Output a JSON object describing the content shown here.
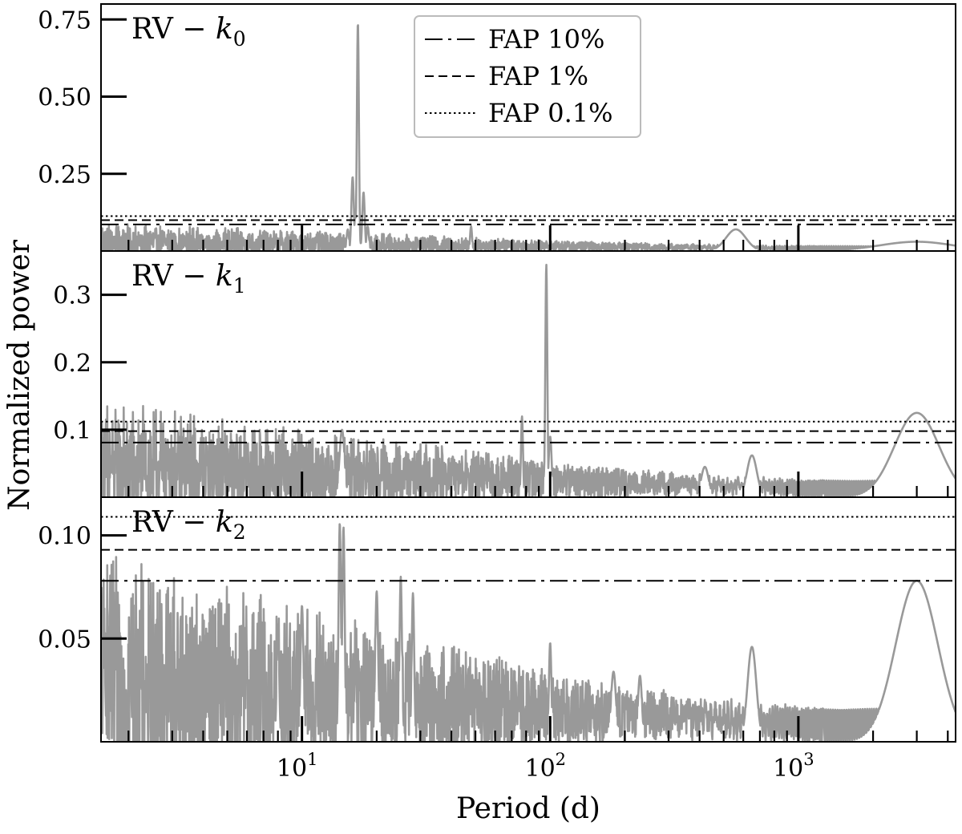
{
  "chart_data": {
    "type": "line",
    "xlabel": "Period (d)",
    "ylabel": "Normalized power",
    "xscale": "log",
    "xlim": [
      1.55,
      4300
    ],
    "x_tick_labels": [
      {
        "value": 10,
        "base": "10",
        "exp": "1"
      },
      {
        "value": 100,
        "base": "10",
        "exp": "2"
      },
      {
        "value": 1000,
        "base": "10",
        "exp": "3"
      }
    ],
    "line_color": "#999999",
    "legend": {
      "placement": "top-center (top panel)",
      "entries": [
        {
          "label": "FAP 10%",
          "style": "dash-dot"
        },
        {
          "label": "FAP 1%",
          "style": "dashed"
        },
        {
          "label": "FAP 0.1%",
          "style": "dotted"
        }
      ]
    },
    "panels": [
      {
        "label_prefix": "RV − ",
        "label_var": "k",
        "label_sub": "0",
        "ylim": [
          0,
          0.8
        ],
        "yticks": [
          0.25,
          0.5,
          0.75
        ],
        "ytick_labels": [
          "0.25",
          "0.50",
          "0.75"
        ],
        "fap": {
          "fap10": 0.086,
          "fap1": 0.1,
          "fap01": 0.113
        },
        "noise_level": 0.018,
        "peaks": [
          {
            "period": 16.8,
            "power": 0.74,
            "width": 0.004
          },
          {
            "period": 16.0,
            "power": 0.24,
            "width": 0.005
          },
          {
            "period": 17.7,
            "power": 0.19,
            "width": 0.005
          },
          {
            "period": 16.4,
            "power": 0.12,
            "width": 0.004
          },
          {
            "period": 15.3,
            "power": 0.07,
            "width": 0.005
          },
          {
            "period": 18.4,
            "power": 0.08,
            "width": 0.005
          },
          {
            "period": 560,
            "power": 0.07,
            "width": 0.04
          },
          {
            "period": 48,
            "power": 0.08,
            "width": 0.004
          },
          {
            "period": 3000,
            "power": 0.03,
            "width": 0.15
          }
        ]
      },
      {
        "label_prefix": "RV − ",
        "label_var": "k",
        "label_sub": "1",
        "ylim": [
          0,
          0.365
        ],
        "yticks": [
          0.1,
          0.2,
          0.3
        ],
        "ytick_labels": [
          "0.1",
          "0.2",
          "0.3"
        ],
        "fap": {
          "fap10": 0.081,
          "fap1": 0.098,
          "fap01": 0.112
        },
        "noise_level": 0.028,
        "peaks": [
          {
            "period": 96.5,
            "power": 0.345,
            "width": 0.004
          },
          {
            "period": 77,
            "power": 0.12,
            "width": 0.004
          },
          {
            "period": 100,
            "power": 0.09,
            "width": 0.006
          },
          {
            "period": 14.5,
            "power": 0.1,
            "width": 0.01
          },
          {
            "period": 3000,
            "power": 0.125,
            "width": 0.09
          },
          {
            "period": 650,
            "power": 0.062,
            "width": 0.02
          },
          {
            "period": 420,
            "power": 0.045,
            "width": 0.015
          }
        ]
      },
      {
        "label_prefix": "RV − ",
        "label_var": "k",
        "label_sub": "2",
        "ylim": [
          0,
          0.1185
        ],
        "yticks": [
          0.05,
          0.1
        ],
        "ytick_labels": [
          "0.05",
          "0.10"
        ],
        "fap": {
          "fap10": 0.078,
          "fap1": 0.093,
          "fap01": 0.109
        },
        "noise_level": 0.018,
        "peaks": [
          {
            "period": 14.2,
            "power": 0.106,
            "width": 0.005
          },
          {
            "period": 14.7,
            "power": 0.104,
            "width": 0.005
          },
          {
            "period": 25,
            "power": 0.08,
            "width": 0.005
          },
          {
            "period": 20,
            "power": 0.073,
            "width": 0.006
          },
          {
            "period": 28,
            "power": 0.072,
            "width": 0.005
          },
          {
            "period": 10,
            "power": 0.066,
            "width": 0.006
          },
          {
            "period": 8,
            "power": 0.057,
            "width": 0.005
          },
          {
            "period": 100,
            "power": 0.048,
            "width": 0.005
          },
          {
            "period": 3000,
            "power": 0.078,
            "width": 0.085
          },
          {
            "period": 650,
            "power": 0.046,
            "width": 0.018
          },
          {
            "period": 180,
            "power": 0.034,
            "width": 0.01
          },
          {
            "period": 230,
            "power": 0.032,
            "width": 0.008
          },
          {
            "period": 1.6,
            "power": 0.04,
            "width": 0.004
          }
        ]
      }
    ]
  }
}
